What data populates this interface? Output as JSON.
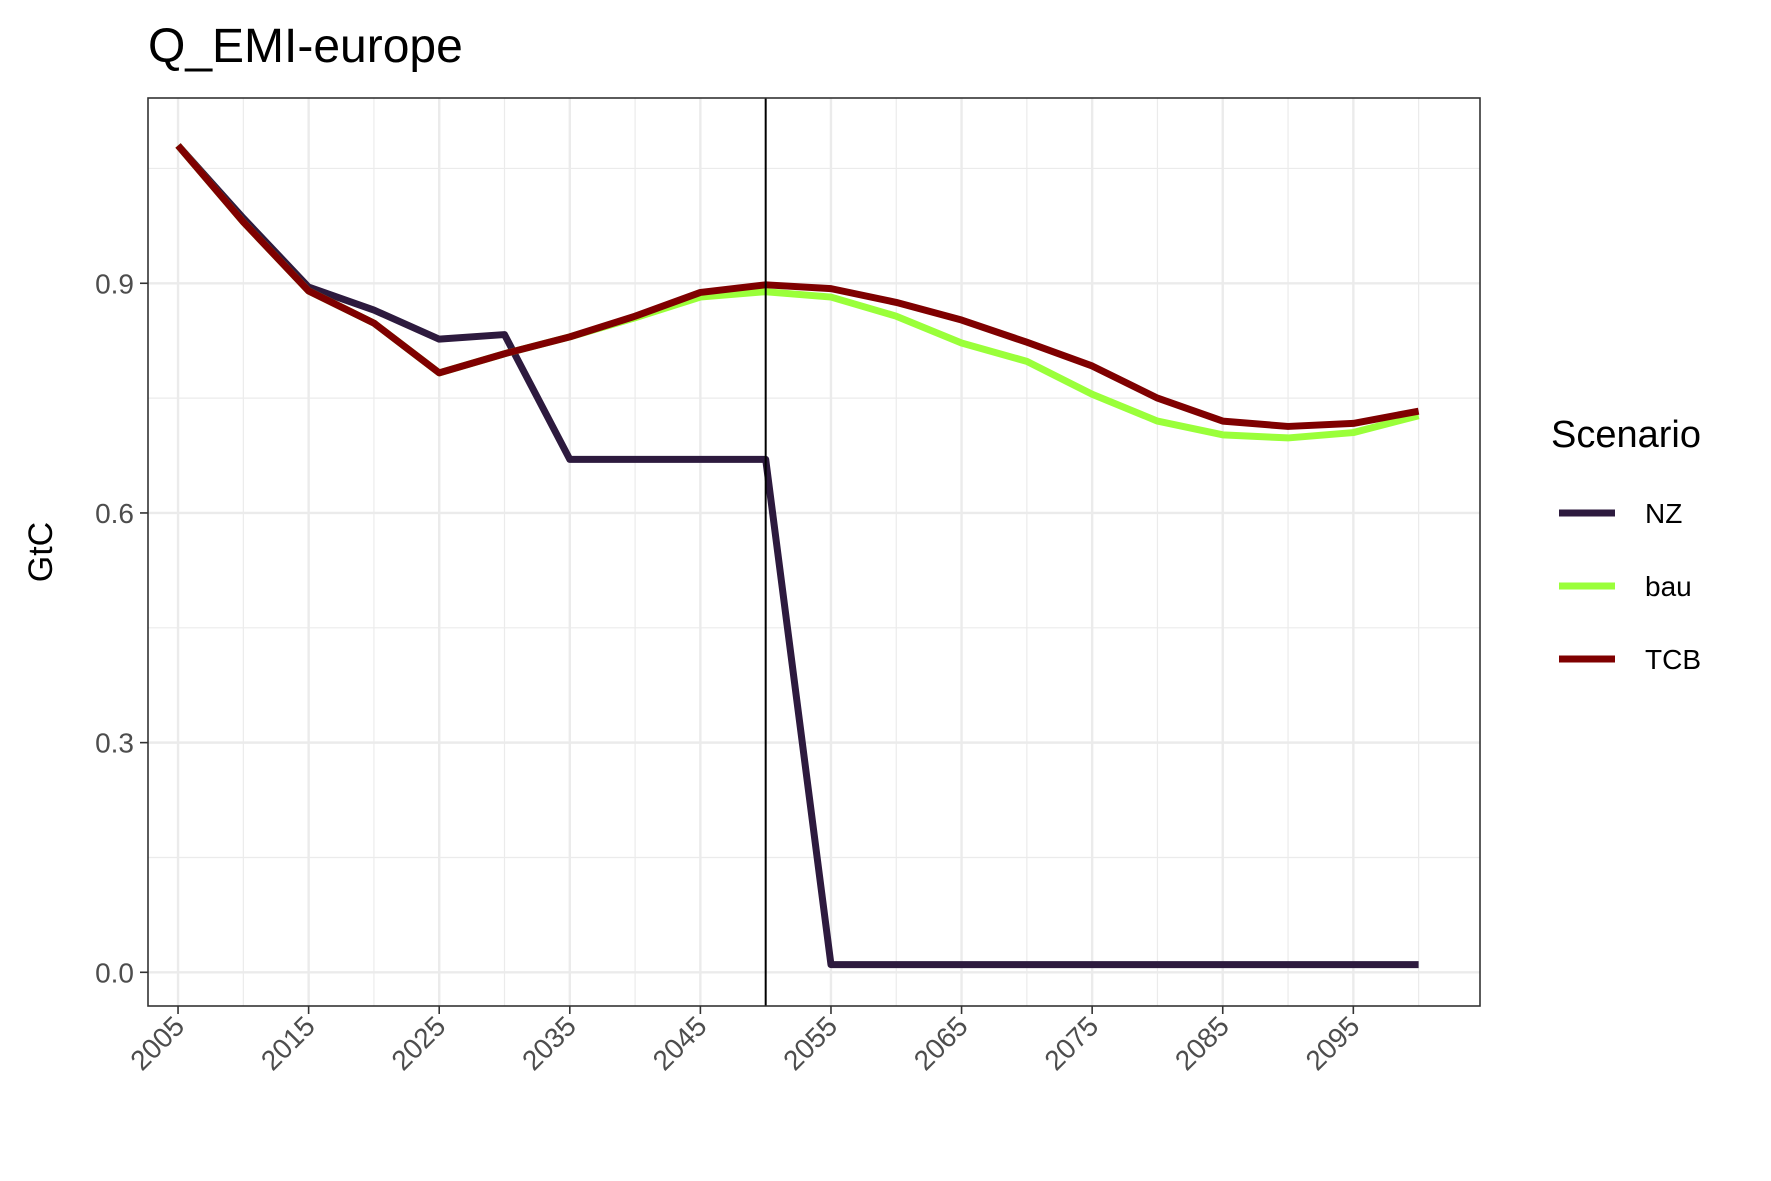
{
  "chart_data": {
    "type": "line",
    "title": "Q_EMI-europe",
    "xlabel": "",
    "ylabel": "GtC",
    "xlim": [
      2002.7,
      2104.7
    ],
    "ylim": [
      -0.044,
      1.142
    ],
    "x_ticks": [
      2005,
      2015,
      2025,
      2035,
      2045,
      2055,
      2065,
      2075,
      2085,
      2095
    ],
    "x_tick_labels": [
      "2005",
      "2015",
      "2025",
      "2035",
      "2045",
      "2055",
      "2065",
      "2075",
      "2085",
      "2095"
    ],
    "y_ticks": [
      0.0,
      0.3,
      0.6,
      0.9
    ],
    "y_tick_labels": [
      "0.0",
      "0.3",
      "0.6",
      "0.9"
    ],
    "grid": true,
    "vline": 2050,
    "legend": {
      "title": "Scenario",
      "placement": "right"
    },
    "x": [
      2005,
      2010,
      2015,
      2020,
      2025,
      2030,
      2035,
      2040,
      2045,
      2050,
      2055,
      2060,
      2065,
      2070,
      2075,
      2080,
      2085,
      2090,
      2095,
      2100
    ],
    "series": [
      {
        "name": "NZ",
        "color": "#2d1a3e",
        "values": [
          1.08,
          0.985,
          0.895,
          0.865,
          0.827,
          0.833,
          0.67,
          0.67,
          0.67,
          0.67,
          0.01,
          0.01,
          0.01,
          0.01,
          0.01,
          0.01,
          0.01,
          0.01,
          0.01,
          0.01
        ]
      },
      {
        "name": "bau",
        "color": "#9aff3a",
        "values": [
          1.08,
          0.98,
          0.89,
          0.848,
          0.783,
          0.808,
          0.83,
          0.855,
          0.882,
          0.889,
          0.882,
          0.857,
          0.822,
          0.798,
          0.755,
          0.72,
          0.702,
          0.698,
          0.705,
          0.727
        ]
      },
      {
        "name": "TCB",
        "color": "#7f0000",
        "values": [
          1.08,
          0.98,
          0.89,
          0.848,
          0.783,
          0.808,
          0.83,
          0.857,
          0.888,
          0.898,
          0.893,
          0.875,
          0.852,
          0.823,
          0.792,
          0.75,
          0.72,
          0.713,
          0.717,
          0.733
        ]
      }
    ]
  }
}
